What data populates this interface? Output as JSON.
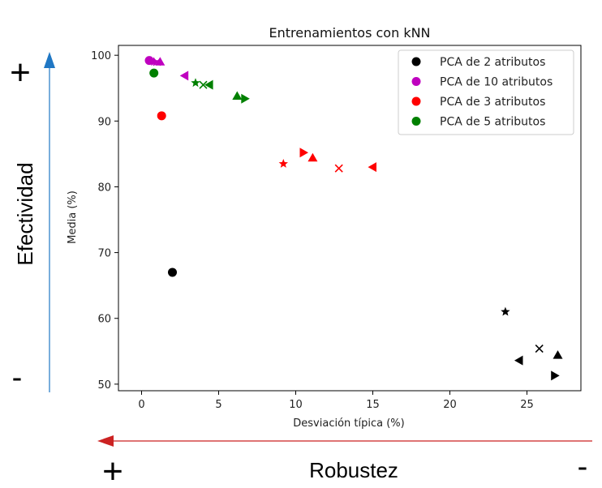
{
  "chart_data": {
    "type": "scatter",
    "title": "Entrenamientos con kNN",
    "xlabel": "Desviación típica (%)",
    "ylabel": "Media (%)",
    "xlim": [
      -1.5,
      28.5
    ],
    "ylim": [
      49,
      101.5
    ],
    "xticks": [
      0,
      5,
      10,
      15,
      20,
      25
    ],
    "yticks": [
      50,
      60,
      70,
      80,
      90,
      100
    ],
    "grid": false,
    "legend_position": "top-right",
    "series": [
      {
        "name": "PCA de 2 atributos",
        "color": "#000000",
        "points": [
          {
            "x": 2.0,
            "y": 67.0,
            "marker": "circle"
          },
          {
            "x": 23.6,
            "y": 61.0,
            "marker": "star"
          },
          {
            "x": 25.8,
            "y": 55.4,
            "marker": "x"
          },
          {
            "x": 24.5,
            "y": 53.6,
            "marker": "triangle-left"
          },
          {
            "x": 27.0,
            "y": 54.4,
            "marker": "triangle-up"
          },
          {
            "x": 26.8,
            "y": 51.3,
            "marker": "triangle-right"
          }
        ]
      },
      {
        "name": "PCA de 10 atributos",
        "color": "#bf00bf",
        "points": [
          {
            "x": 0.5,
            "y": 99.2,
            "marker": "circle"
          },
          {
            "x": 0.8,
            "y": 99.0,
            "marker": "star"
          },
          {
            "x": 1.0,
            "y": 99.0,
            "marker": "x"
          },
          {
            "x": 1.2,
            "y": 99.0,
            "marker": "triangle-up"
          },
          {
            "x": 2.8,
            "y": 96.9,
            "marker": "triangle-left"
          }
        ]
      },
      {
        "name": "PCA de 3 atributos",
        "color": "#ff0000",
        "points": [
          {
            "x": 1.3,
            "y": 90.8,
            "marker": "circle"
          },
          {
            "x": 9.2,
            "y": 83.5,
            "marker": "star"
          },
          {
            "x": 10.5,
            "y": 85.2,
            "marker": "triangle-right"
          },
          {
            "x": 11.1,
            "y": 84.4,
            "marker": "triangle-up"
          },
          {
            "x": 12.8,
            "y": 82.8,
            "marker": "x"
          },
          {
            "x": 15.0,
            "y": 83.0,
            "marker": "triangle-left"
          }
        ]
      },
      {
        "name": "PCA de 5 atributos",
        "color": "#008000",
        "points": [
          {
            "x": 0.8,
            "y": 97.3,
            "marker": "circle"
          },
          {
            "x": 3.5,
            "y": 95.8,
            "marker": "star"
          },
          {
            "x": 4.0,
            "y": 95.5,
            "marker": "x"
          },
          {
            "x": 4.4,
            "y": 95.5,
            "marker": "triangle-left"
          },
          {
            "x": 6.2,
            "y": 93.8,
            "marker": "triangle-up"
          },
          {
            "x": 6.7,
            "y": 93.4,
            "marker": "triangle-right"
          }
        ]
      }
    ]
  },
  "annotations": {
    "vertical_label": "Efectividad",
    "vertical_top_sign": "+",
    "vertical_bottom_sign": "-",
    "vertical_arrow_color": "#1f77c4",
    "horizontal_label": "Robustez",
    "horizontal_left_sign": "+",
    "horizontal_right_sign": "-",
    "horizontal_arrow_color": "#cc2222"
  }
}
